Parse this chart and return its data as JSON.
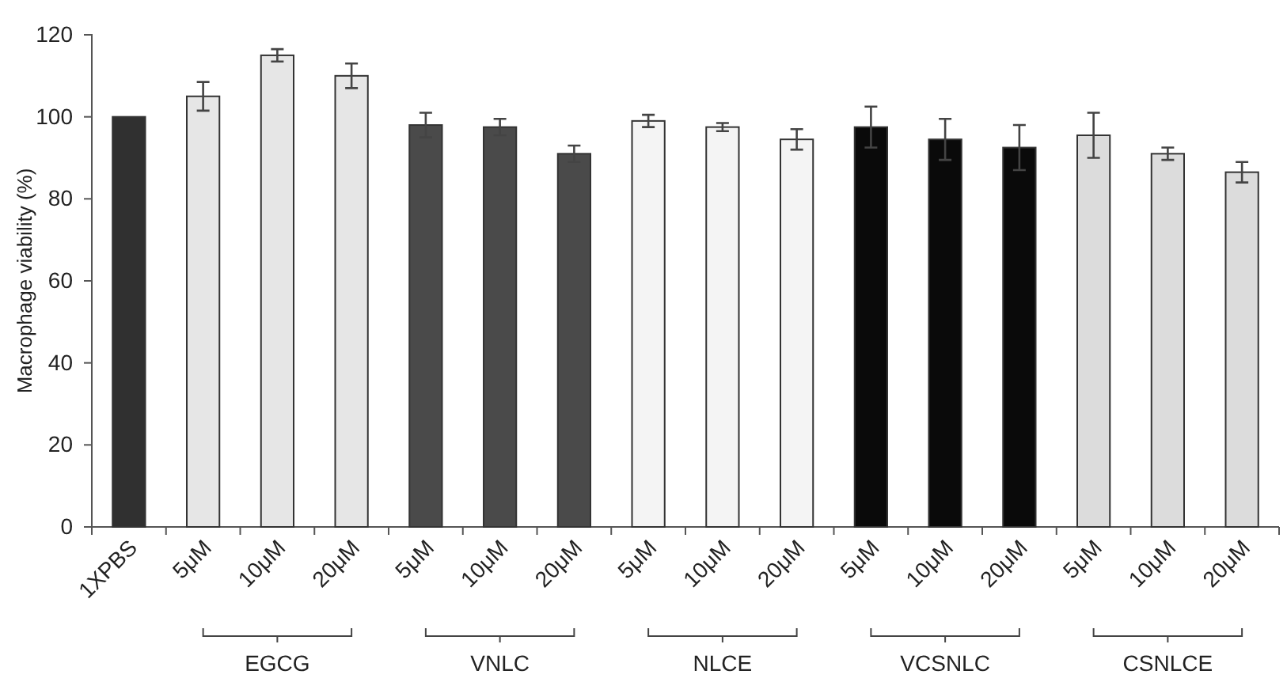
{
  "chart_data": {
    "type": "bar",
    "ylabel": "Macrophage viability (%)",
    "categories": [
      "1XPBS",
      "5μM",
      "10μM",
      "20μM",
      "5μM",
      "10μM",
      "20μM",
      "5μM",
      "10μM",
      "20μM",
      "5μM",
      "10μM",
      "20μM",
      "5μM",
      "10μM",
      "20μM"
    ],
    "values": [
      100,
      105,
      115,
      110,
      98,
      97.5,
      91,
      99,
      97.5,
      94.5,
      97.5,
      94.5,
      92.5,
      95.5,
      91,
      86.5
    ],
    "errors": [
      null,
      3.5,
      1.5,
      3,
      3,
      2,
      2,
      1.5,
      1,
      2.5,
      5,
      5,
      5.5,
      5.5,
      1.5,
      2.5
    ],
    "colors": [
      "#303030",
      "#e6e6e6",
      "#e6e6e6",
      "#e6e6e6",
      "#4a4a4a",
      "#4a4a4a",
      "#4a4a4a",
      "#f4f4f4",
      "#f4f4f4",
      "#f4f4f4",
      "#0a0a0a",
      "#0a0a0a",
      "#0a0a0a",
      "#dcdcdc",
      "#dcdcdc",
      "#dcdcdc"
    ],
    "annotations": [
      "EGCG",
      "VNLC",
      "NLCE",
      "VCSNLC",
      "CSNLCE"
    ],
    "ylim": [
      0,
      120
    ],
    "yticks": [
      0,
      20,
      40,
      60,
      80,
      100,
      120
    ],
    "grid": false
  }
}
